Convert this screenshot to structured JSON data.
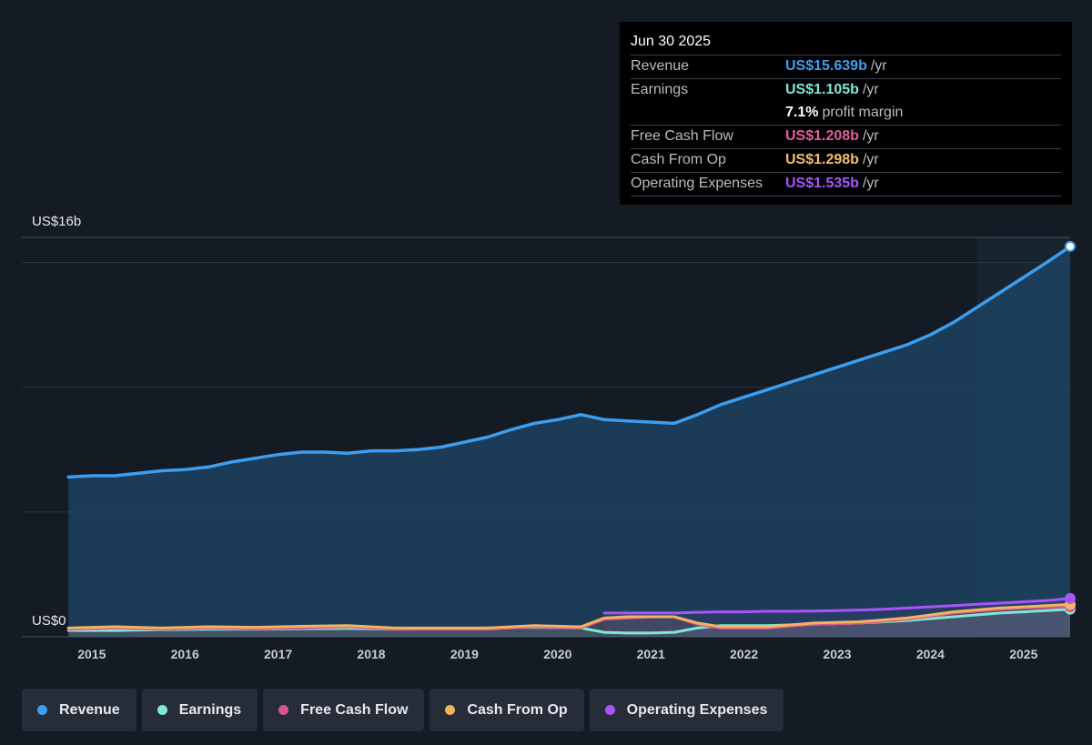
{
  "tooltip": {
    "date": "Jun 30 2025",
    "rows": [
      {
        "label": "Revenue",
        "value": "US$15.639b",
        "unit": "/yr",
        "color": "#3b9ef0"
      },
      {
        "label": "Earnings",
        "value": "US$1.105b",
        "unit": "/yr",
        "color": "#7de9d6"
      },
      {
        "label": "",
        "value": "7.1%",
        "unit": "profit margin",
        "color": "#ffffff"
      },
      {
        "label": "Free Cash Flow",
        "value": "US$1.208b",
        "unit": "/yr",
        "color": "#e05d9c"
      },
      {
        "label": "Cash From Op",
        "value": "US$1.298b",
        "unit": "/yr",
        "color": "#f4bd6b"
      },
      {
        "label": "Operating Expenses",
        "value": "US$1.535b",
        "unit": "/yr",
        "color": "#a855f7"
      }
    ]
  },
  "legend": [
    {
      "label": "Revenue",
      "color": "#3b9ef0"
    },
    {
      "label": "Earnings",
      "color": "#7de9d6"
    },
    {
      "label": "Free Cash Flow",
      "color": "#d9548f"
    },
    {
      "label": "Cash From Op",
      "color": "#f2b45f"
    },
    {
      "label": "Operating Expenses",
      "color": "#a855f7"
    }
  ],
  "chart_data": {
    "type": "line",
    "ylabel_top": "US$16b",
    "ylabel_bottom": "US$0",
    "ylim": [
      0,
      16
    ],
    "xlim": [
      2014.25,
      2025.5
    ],
    "x_ticks": [
      "2015",
      "2016",
      "2017",
      "2018",
      "2019",
      "2020",
      "2021",
      "2022",
      "2023",
      "2024",
      "2025"
    ],
    "highlight_from": 2024.5,
    "series": [
      {
        "name": "Revenue",
        "color": "#3b9ef0",
        "area": true,
        "x": [
          2014.75,
          2015.0,
          2015.25,
          2015.5,
          2015.75,
          2016.0,
          2016.25,
          2016.5,
          2016.75,
          2017.0,
          2017.25,
          2017.5,
          2017.75,
          2018.0,
          2018.25,
          2018.5,
          2018.75,
          2019.0,
          2019.25,
          2019.5,
          2019.75,
          2020.0,
          2020.25,
          2020.5,
          2020.75,
          2021.0,
          2021.25,
          2021.5,
          2021.75,
          2022.0,
          2022.25,
          2022.5,
          2022.75,
          2023.0,
          2023.25,
          2023.5,
          2023.75,
          2024.0,
          2024.25,
          2024.5,
          2024.75,
          2025.0,
          2025.25,
          2025.5
        ],
        "y": [
          6.4,
          6.45,
          6.45,
          6.55,
          6.65,
          6.7,
          6.8,
          7.0,
          7.15,
          7.3,
          7.4,
          7.4,
          7.35,
          7.45,
          7.45,
          7.5,
          7.6,
          7.8,
          8.0,
          8.3,
          8.55,
          8.7,
          8.9,
          8.7,
          8.65,
          8.6,
          8.55,
          8.9,
          9.3,
          9.6,
          9.9,
          10.2,
          10.5,
          10.8,
          11.1,
          11.4,
          11.7,
          12.1,
          12.6,
          13.2,
          13.8,
          14.4,
          15.0,
          15.639
        ]
      },
      {
        "name": "Earnings",
        "color": "#7de9d6",
        "area": false,
        "x": [
          2014.75,
          2015.25,
          2015.75,
          2016.25,
          2016.75,
          2017.25,
          2017.75,
          2018.25,
          2018.75,
          2019.25,
          2019.75,
          2020.25,
          2020.5,
          2020.75,
          2021.0,
          2021.25,
          2021.5,
          2021.75,
          2022.25,
          2022.75,
          2023.25,
          2023.75,
          2024.25,
          2024.75,
          2025.0,
          2025.5
        ],
        "y": [
          0.25,
          0.25,
          0.28,
          0.3,
          0.3,
          0.32,
          0.33,
          0.3,
          0.32,
          0.35,
          0.38,
          0.35,
          0.18,
          0.15,
          0.15,
          0.18,
          0.35,
          0.45,
          0.45,
          0.5,
          0.55,
          0.65,
          0.8,
          0.95,
          1.0,
          1.105
        ]
      },
      {
        "name": "Free Cash Flow",
        "color": "#d9548f",
        "area": false,
        "x": [
          2014.75,
          2015.25,
          2015.75,
          2016.25,
          2016.75,
          2017.25,
          2017.75,
          2018.25,
          2018.75,
          2019.25,
          2019.75,
          2020.25,
          2020.5,
          2020.75,
          2021.0,
          2021.25,
          2021.5,
          2021.75,
          2022.25,
          2022.75,
          2023.25,
          2023.75,
          2024.25,
          2024.75,
          2025.0,
          2025.5
        ],
        "y": [
          0.3,
          0.35,
          0.3,
          0.35,
          0.32,
          0.35,
          0.4,
          0.3,
          0.3,
          0.3,
          0.4,
          0.35,
          0.7,
          0.75,
          0.8,
          0.8,
          0.5,
          0.35,
          0.35,
          0.5,
          0.55,
          0.7,
          0.95,
          1.1,
          1.15,
          1.208
        ]
      },
      {
        "name": "Cash From Op",
        "color": "#f2b45f",
        "area": false,
        "x": [
          2014.75,
          2015.25,
          2015.75,
          2016.25,
          2016.75,
          2017.25,
          2017.75,
          2018.25,
          2018.75,
          2019.25,
          2019.75,
          2020.25,
          2020.5,
          2020.75,
          2021.0,
          2021.25,
          2021.5,
          2021.75,
          2022.25,
          2022.75,
          2023.25,
          2023.75,
          2024.25,
          2024.75,
          2025.0,
          2025.5
        ],
        "y": [
          0.35,
          0.4,
          0.35,
          0.4,
          0.38,
          0.42,
          0.45,
          0.35,
          0.35,
          0.35,
          0.45,
          0.4,
          0.75,
          0.8,
          0.8,
          0.8,
          0.55,
          0.4,
          0.4,
          0.55,
          0.6,
          0.75,
          1.0,
          1.15,
          1.2,
          1.298
        ]
      },
      {
        "name": "Operating Expenses",
        "color": "#a855f7",
        "area": false,
        "x": [
          2020.5,
          2020.75,
          2021.0,
          2021.25,
          2021.5,
          2021.75,
          2022.0,
          2022.25,
          2022.5,
          2022.75,
          2023.0,
          2023.25,
          2023.5,
          2023.75,
          2024.0,
          2024.25,
          2024.5,
          2024.75,
          2025.0,
          2025.25,
          2025.5
        ],
        "y": [
          0.95,
          0.95,
          0.95,
          0.95,
          0.98,
          1.0,
          1.0,
          1.02,
          1.02,
          1.03,
          1.05,
          1.07,
          1.1,
          1.15,
          1.2,
          1.25,
          1.3,
          1.35,
          1.4,
          1.45,
          1.535
        ]
      }
    ]
  }
}
